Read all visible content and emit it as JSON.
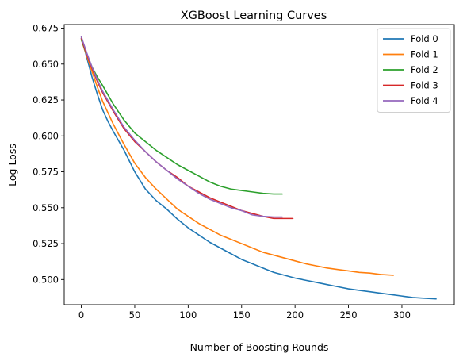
{
  "chart_data": {
    "type": "line",
    "title": "XGBoost Learning Curves",
    "xlabel": "Number of Boosting Rounds",
    "ylabel": "Log Loss",
    "xlim": [
      -16,
      349
    ],
    "ylim": [
      0.4825,
      0.6775
    ],
    "xticks": [
      0,
      50,
      100,
      150,
      200,
      250,
      300
    ],
    "yticks": [
      0.5,
      0.525,
      0.55,
      0.575,
      0.6,
      0.625,
      0.65,
      0.675
    ],
    "grid": false,
    "legend_position": "top-right",
    "series": [
      {
        "name": "Fold 0",
        "color": "#1f77b4",
        "x": [
          0,
          5,
          10,
          15,
          20,
          25,
          30,
          40,
          50,
          60,
          70,
          80,
          90,
          100,
          110,
          120,
          130,
          140,
          150,
          160,
          170,
          180,
          190,
          200,
          210,
          220,
          230,
          240,
          250,
          260,
          270,
          280,
          290,
          300,
          310,
          320,
          332
        ],
        "y": [
          0.668,
          0.655,
          0.641,
          0.629,
          0.618,
          0.61,
          0.603,
          0.59,
          0.575,
          0.563,
          0.555,
          0.549,
          0.542,
          0.536,
          0.531,
          0.526,
          0.522,
          0.518,
          0.514,
          0.511,
          0.508,
          0.505,
          0.503,
          0.501,
          0.4995,
          0.498,
          0.4965,
          0.495,
          0.4935,
          0.4925,
          0.4915,
          0.4905,
          0.4895,
          0.4885,
          0.4875,
          0.487,
          0.4865
        ]
      },
      {
        "name": "Fold 1",
        "color": "#ff7f0e",
        "x": [
          0,
          5,
          10,
          15,
          20,
          30,
          40,
          50,
          60,
          70,
          80,
          90,
          100,
          110,
          120,
          130,
          140,
          150,
          160,
          170,
          180,
          190,
          200,
          210,
          220,
          230,
          240,
          250,
          260,
          270,
          280,
          292
        ],
        "y": [
          0.667,
          0.656,
          0.645,
          0.634,
          0.624,
          0.608,
          0.594,
          0.581,
          0.571,
          0.563,
          0.556,
          0.549,
          0.544,
          0.539,
          0.535,
          0.531,
          0.528,
          0.525,
          0.522,
          0.519,
          0.517,
          0.515,
          0.513,
          0.511,
          0.5095,
          0.508,
          0.507,
          0.506,
          0.505,
          0.5045,
          0.5035,
          0.503
        ]
      },
      {
        "name": "Fold 2",
        "color": "#2ca02c",
        "x": [
          0,
          5,
          10,
          15,
          20,
          30,
          40,
          50,
          60,
          70,
          80,
          90,
          100,
          110,
          120,
          130,
          140,
          150,
          160,
          170,
          180,
          188
        ],
        "y": [
          0.667,
          0.657,
          0.648,
          0.641,
          0.635,
          0.622,
          0.611,
          0.602,
          0.596,
          0.59,
          0.585,
          0.58,
          0.576,
          0.572,
          0.568,
          0.565,
          0.563,
          0.562,
          0.561,
          0.56,
          0.5595,
          0.5595
        ]
      },
      {
        "name": "Fold 3",
        "color": "#d62728",
        "x": [
          0,
          5,
          10,
          15,
          20,
          30,
          40,
          50,
          60,
          70,
          80,
          90,
          100,
          110,
          120,
          130,
          140,
          150,
          160,
          170,
          180,
          190,
          198
        ],
        "y": [
          0.668,
          0.657,
          0.647,
          0.638,
          0.63,
          0.617,
          0.605,
          0.596,
          0.589,
          0.582,
          0.576,
          0.571,
          0.565,
          0.561,
          0.557,
          0.554,
          0.551,
          0.548,
          0.546,
          0.544,
          0.5425,
          0.5425,
          0.5425
        ]
      },
      {
        "name": "Fold 4",
        "color": "#9467bd",
        "x": [
          0,
          5,
          10,
          15,
          20,
          30,
          40,
          50,
          60,
          70,
          80,
          90,
          100,
          110,
          120,
          130,
          140,
          150,
          160,
          170,
          180,
          188
        ],
        "y": [
          0.669,
          0.658,
          0.648,
          0.639,
          0.631,
          0.618,
          0.606,
          0.597,
          0.589,
          0.582,
          0.576,
          0.57,
          0.565,
          0.56,
          0.556,
          0.553,
          0.55,
          0.548,
          0.545,
          0.544,
          0.5435,
          0.5435
        ]
      }
    ]
  }
}
